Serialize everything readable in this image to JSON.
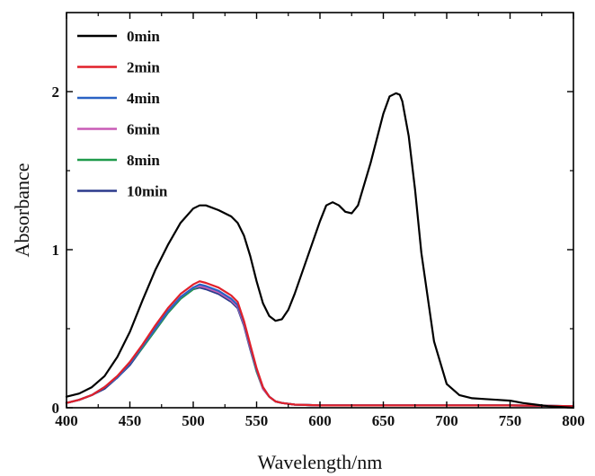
{
  "chart_data": {
    "type": "line",
    "xlabel": "Wavelength/nm",
    "ylabel": "Absorbance",
    "xlim": [
      400,
      800
    ],
    "ylim": [
      0,
      2.5
    ],
    "xticks": [
      "400",
      "450",
      "500",
      "550",
      "600",
      "650",
      "700",
      "750",
      "800"
    ],
    "xtick_values": [
      400,
      450,
      500,
      550,
      600,
      650,
      700,
      750,
      800
    ],
    "yticks": [
      "0",
      "1",
      "2"
    ],
    "ytick_values": [
      0,
      1,
      2
    ],
    "grid": false,
    "legend_position": "top-left",
    "series": [
      {
        "name": "0min",
        "color": "#000000",
        "x": [
          400,
          410,
          420,
          430,
          440,
          450,
          460,
          470,
          480,
          490,
          500,
          505,
          510,
          520,
          530,
          535,
          540,
          545,
          550,
          555,
          560,
          565,
          570,
          575,
          580,
          590,
          600,
          605,
          610,
          615,
          620,
          625,
          630,
          640,
          650,
          655,
          660,
          663,
          665,
          670,
          675,
          680,
          690,
          700,
          710,
          720,
          730,
          740,
          750,
          760,
          770,
          780,
          790,
          800
        ],
        "y": [
          0.07,
          0.09,
          0.13,
          0.2,
          0.32,
          0.48,
          0.68,
          0.87,
          1.03,
          1.17,
          1.26,
          1.28,
          1.28,
          1.25,
          1.21,
          1.17,
          1.09,
          0.96,
          0.8,
          0.66,
          0.58,
          0.55,
          0.56,
          0.62,
          0.72,
          0.95,
          1.18,
          1.28,
          1.3,
          1.28,
          1.24,
          1.23,
          1.28,
          1.55,
          1.86,
          1.97,
          1.99,
          1.98,
          1.94,
          1.72,
          1.38,
          0.98,
          0.42,
          0.15,
          0.08,
          0.06,
          0.055,
          0.05,
          0.045,
          0.03,
          0.02,
          0.01,
          0.005,
          0.0
        ]
      },
      {
        "name": "2min",
        "color": "#e0202a",
        "x": [
          400,
          410,
          420,
          430,
          440,
          450,
          460,
          470,
          480,
          490,
          500,
          505,
          510,
          520,
          530,
          535,
          540,
          545,
          550,
          555,
          560,
          565,
          570,
          580,
          600,
          650,
          700,
          750,
          800
        ],
        "y": [
          0.03,
          0.05,
          0.08,
          0.13,
          0.2,
          0.29,
          0.4,
          0.52,
          0.63,
          0.72,
          0.78,
          0.8,
          0.79,
          0.76,
          0.71,
          0.67,
          0.55,
          0.4,
          0.25,
          0.13,
          0.07,
          0.04,
          0.03,
          0.02,
          0.015,
          0.015,
          0.015,
          0.015,
          0.01
        ]
      },
      {
        "name": "4min",
        "color": "#2a62c4",
        "x": [
          400,
          410,
          420,
          430,
          440,
          450,
          460,
          470,
          480,
          490,
          500,
          505,
          510,
          520,
          530,
          535,
          540,
          545,
          550,
          555,
          560,
          565,
          570,
          580,
          600,
          650,
          700,
          750,
          800
        ],
        "y": [
          0.03,
          0.05,
          0.08,
          0.13,
          0.19,
          0.28,
          0.39,
          0.5,
          0.61,
          0.7,
          0.76,
          0.78,
          0.77,
          0.74,
          0.69,
          0.65,
          0.54,
          0.39,
          0.24,
          0.13,
          0.07,
          0.04,
          0.03,
          0.02,
          0.015,
          0.015,
          0.015,
          0.015,
          0.01
        ]
      },
      {
        "name": "6min",
        "color": "#c95cb6",
        "x": [
          400,
          410,
          420,
          430,
          440,
          450,
          460,
          470,
          480,
          490,
          500,
          505,
          510,
          520,
          530,
          535,
          540,
          545,
          550,
          555,
          560,
          565,
          570,
          580,
          600,
          650,
          700,
          750,
          800
        ],
        "y": [
          0.03,
          0.05,
          0.08,
          0.13,
          0.19,
          0.28,
          0.39,
          0.5,
          0.61,
          0.7,
          0.76,
          0.77,
          0.76,
          0.73,
          0.68,
          0.64,
          0.53,
          0.38,
          0.24,
          0.12,
          0.07,
          0.04,
          0.03,
          0.02,
          0.015,
          0.015,
          0.015,
          0.015,
          0.01
        ]
      },
      {
        "name": "8min",
        "color": "#1f9a4b",
        "x": [
          400,
          410,
          420,
          430,
          440,
          450,
          460,
          470,
          480,
          490,
          500,
          505,
          510,
          520,
          530,
          535,
          540,
          545,
          550,
          555,
          560,
          565,
          570,
          580,
          600,
          650,
          700,
          750,
          800
        ],
        "y": [
          0.03,
          0.05,
          0.08,
          0.13,
          0.19,
          0.28,
          0.38,
          0.49,
          0.6,
          0.69,
          0.75,
          0.77,
          0.76,
          0.73,
          0.68,
          0.64,
          0.53,
          0.38,
          0.23,
          0.12,
          0.07,
          0.04,
          0.03,
          0.02,
          0.015,
          0.015,
          0.015,
          0.015,
          0.01
        ]
      },
      {
        "name": "10min",
        "color": "#2b3a8c",
        "x": [
          400,
          410,
          420,
          430,
          440,
          450,
          460,
          470,
          480,
          490,
          500,
          505,
          510,
          520,
          530,
          535,
          540,
          545,
          550,
          555,
          560,
          565,
          570,
          580,
          600,
          650,
          700,
          750,
          800
        ],
        "y": [
          0.03,
          0.05,
          0.08,
          0.12,
          0.19,
          0.27,
          0.38,
          0.49,
          0.6,
          0.69,
          0.75,
          0.76,
          0.75,
          0.72,
          0.67,
          0.63,
          0.52,
          0.37,
          0.23,
          0.12,
          0.07,
          0.04,
          0.03,
          0.02,
          0.015,
          0.015,
          0.015,
          0.015,
          0.01
        ]
      }
    ]
  }
}
